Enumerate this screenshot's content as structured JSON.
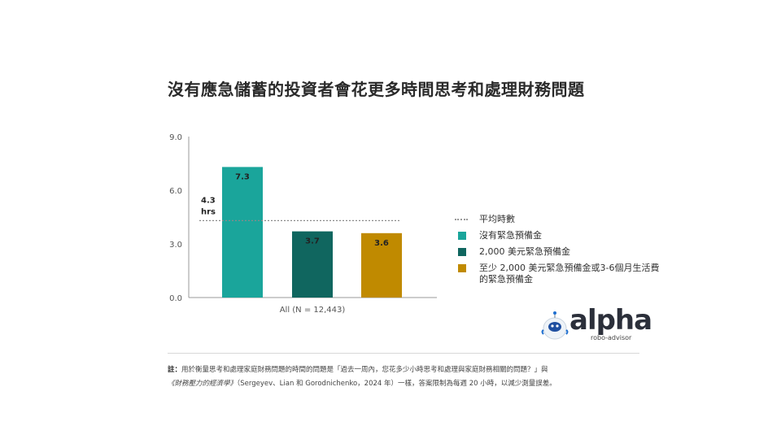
{
  "title": "沒有應急儲蓄的投資者會花更多時間思考和處理財務問題",
  "legend": {
    "avg_label": "平均時數",
    "items": [
      {
        "label": "沒有緊急預備金",
        "color": "#1aa59b"
      },
      {
        "label": "2,000 美元緊急預備金",
        "color": "#10665f"
      },
      {
        "label": "至少 2,000 美元緊急預備金或3-6個月生活費的緊急預備金",
        "color": "#c08a00"
      }
    ]
  },
  "logo": {
    "word": "alpha",
    "sub": "robo-advisor"
  },
  "note": {
    "prefix": "註：",
    "text1": "用於衡量思考和處理家庭財務問題的時間的問題是「過去一周內，您花多少小時思考和處理與家庭財務相關的問題？」與",
    "book": "《財務壓力的經濟學》",
    "text2": "（Sergeyev、Lian 和 Gorodnichenko，2024 年）一樣，答案限制為每週 20 小時，以減少測量誤差。"
  },
  "chart_data": {
    "type": "bar",
    "categories": [
      "All (N = 12,443)"
    ],
    "series": [
      {
        "name": "沒有緊急預備金",
        "values": [
          7.3
        ],
        "color": "#1aa59b"
      },
      {
        "name": "2,000 美元緊急預備金",
        "values": [
          3.7
        ],
        "color": "#10665f"
      },
      {
        "name": "至少 2,000 美元緊急預備金或3-6個月生活費的緊急預備金",
        "values": [
          3.6
        ],
        "color": "#c08a00"
      }
    ],
    "data_labels": [
      "7.3",
      "3.7",
      "3.6"
    ],
    "reference_line": {
      "name": "平均時數",
      "value": 4.3,
      "label_line1": "4.3",
      "label_line2": "hrs"
    },
    "yticks": [
      "0.0",
      "3.0",
      "6.0",
      "9.0"
    ],
    "ylim": [
      0,
      9
    ],
    "legend_position": "right",
    "grid": false
  }
}
